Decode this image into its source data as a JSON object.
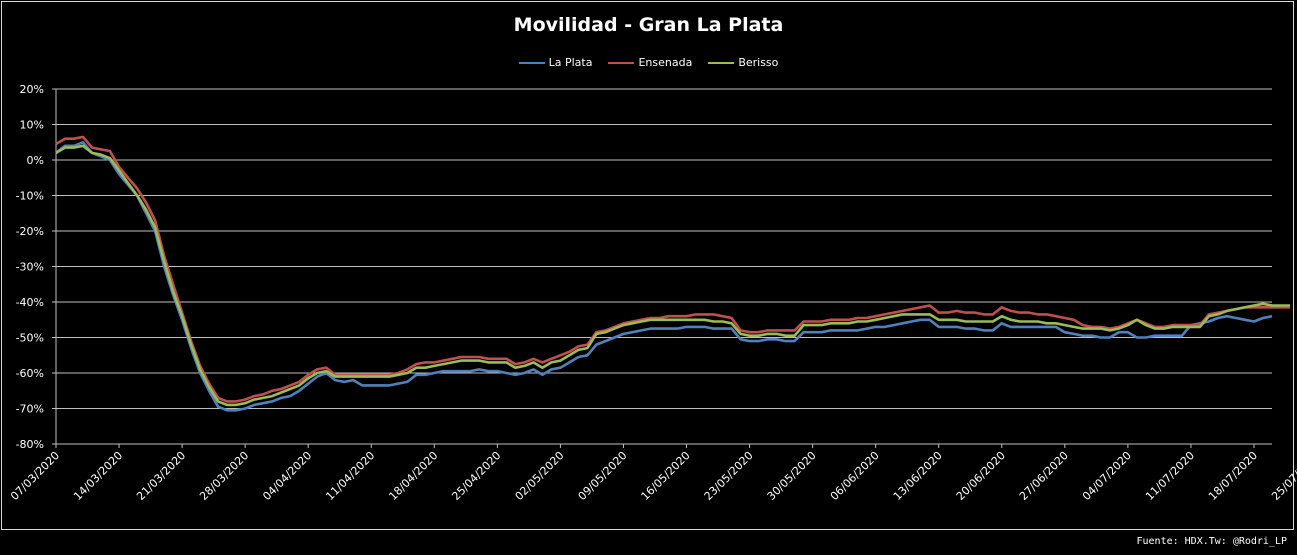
{
  "footer": {
    "source": "Fuente: HDX.Tw: @Rodri_LP"
  },
  "chart_data": {
    "type": "line",
    "title": "Movilidad - Gran La Plata",
    "xlabel": "",
    "ylabel": "",
    "ylim": [
      -80,
      20
    ],
    "yticks": [
      "20%",
      "10%",
      "0%",
      "-10%",
      "-20%",
      "-30%",
      "-40%",
      "-50%",
      "-60%",
      "-70%",
      "-80%"
    ],
    "ytick_values": [
      20,
      10,
      0,
      -10,
      -20,
      -30,
      -40,
      -50,
      -60,
      -70,
      -80
    ],
    "xticks": [
      "07/03/2020",
      "14/03/2020",
      "21/03/2020",
      "28/03/2020",
      "04/04/2020",
      "11/04/2020",
      "18/04/2020",
      "25/04/2020",
      "02/05/2020",
      "09/05/2020",
      "16/05/2020",
      "23/05/2020",
      "30/05/2020",
      "06/06/2020",
      "13/06/2020",
      "20/06/2020",
      "27/06/2020",
      "04/07/2020",
      "11/07/2020",
      "18/07/2020",
      "25/07/2020"
    ],
    "grid": true,
    "legend_position": "top",
    "series": [
      {
        "name": "La Plata",
        "color": "#4f81bd",
        "values": [
          2,
          4,
          4,
          5,
          2,
          1,
          0,
          -4,
          -7,
          -10,
          -15,
          -20,
          -30,
          -38,
          -45,
          -53,
          -60,
          -65,
          -69.5,
          -70.5,
          -70.5,
          -70,
          -69,
          -68.5,
          -68,
          -67,
          -66.5,
          -65,
          -63,
          -61,
          -60,
          -62,
          -62.5,
          -62,
          -63.5,
          -63.5,
          -63.5,
          -63.5,
          -63,
          -62.5,
          -60.5,
          -60.5,
          -60,
          -59.5,
          -59.5,
          -59.5,
          -59.5,
          -59,
          -59.5,
          -59.5,
          -60,
          -60.5,
          -60,
          -59,
          -60.5,
          -59,
          -58.5,
          -57,
          -55.5,
          -55,
          -52,
          -51,
          -50,
          -49,
          -48.5,
          -48,
          -47.5,
          -47.5,
          -47.5,
          -47.5,
          -47,
          -47,
          -47,
          -47.5,
          -47.5,
          -47.5,
          -50.5,
          -51,
          -51,
          -50.5,
          -50.5,
          -51,
          -51,
          -48.5,
          -48.5,
          -48.5,
          -48,
          -48,
          -48,
          -48,
          -47.5,
          -47,
          -47,
          -46.5,
          -46,
          -45.5,
          -45,
          -45,
          -47,
          -47,
          -47,
          -47.5,
          -47.5,
          -48,
          -48,
          -46,
          -47,
          -47,
          -47,
          -47,
          -47,
          -47,
          -48.5,
          -49,
          -49.5,
          -49.5,
          -50,
          -50,
          -48.5,
          -48.5,
          -50,
          -50,
          -49.5,
          -49.5,
          -49.5,
          -49.5,
          -46.5,
          -46,
          -45.5,
          -44.5,
          -44,
          -44.5,
          -45,
          -45.5,
          -44.5,
          -44
        ]
      },
      {
        "name": "Ensenada",
        "color": "#c0504d",
        "values": [
          4.5,
          6,
          6,
          6.5,
          3.5,
          3,
          2.5,
          -2,
          -5,
          -8,
          -12,
          -17,
          -27,
          -35,
          -43,
          -51,
          -58,
          -63,
          -67,
          -68,
          -68,
          -67.5,
          -66.5,
          -66,
          -65,
          -64.5,
          -63.5,
          -62.5,
          -60.5,
          -59,
          -58.5,
          -60.5,
          -60.5,
          -60.5,
          -60.5,
          -60.5,
          -60.5,
          -60.5,
          -60,
          -59,
          -57.5,
          -57,
          -57,
          -56.5,
          -56,
          -55.5,
          -55.5,
          -55.5,
          -56,
          -56,
          -56,
          -57.5,
          -57,
          -56,
          -57,
          -56,
          -55,
          -54,
          -52.5,
          -52,
          -48.5,
          -48,
          -47,
          -46,
          -45.5,
          -45,
          -44.5,
          -44.5,
          -44,
          -44,
          -44,
          -43.5,
          -43.5,
          -43.5,
          -44,
          -44.5,
          -48,
          -48.5,
          -48.5,
          -48,
          -48,
          -48,
          -48,
          -45.5,
          -45.5,
          -45.5,
          -45,
          -45,
          -45,
          -44.5,
          -44.5,
          -44,
          -43.5,
          -43,
          -42.5,
          -42,
          -41.5,
          -41,
          -43,
          -43,
          -42.5,
          -43,
          -43,
          -43.5,
          -43.5,
          -41.5,
          -42.5,
          -43,
          -43,
          -43.5,
          -43.5,
          -44,
          -44.5,
          -45,
          -46.5,
          -47,
          -47,
          -47.5,
          -47,
          -46,
          -45,
          -46,
          -47,
          -47,
          -46.5,
          -46.5,
          -46.5,
          -46.5,
          -43.5,
          -43,
          -42.5,
          -42,
          -41.5,
          -41.5,
          -41.5,
          -41.5,
          -41.5,
          -41.5
        ]
      },
      {
        "name": "Berisso",
        "color": "#9bbb59",
        "values": [
          2,
          3.5,
          3.5,
          4,
          2,
          1.5,
          0.5,
          -3,
          -6.5,
          -10,
          -14,
          -19,
          -28.5,
          -37,
          -44,
          -52,
          -59,
          -64,
          -68,
          -69,
          -69,
          -68.5,
          -67.5,
          -67,
          -66.5,
          -65.5,
          -64.5,
          -63.5,
          -61.5,
          -60,
          -59.5,
          -61,
          -61,
          -61,
          -61,
          -61,
          -61,
          -61,
          -60.5,
          -60,
          -58.5,
          -58.5,
          -58,
          -57.5,
          -57,
          -56.5,
          -56.5,
          -56.5,
          -57,
          -57,
          -57,
          -58.5,
          -58,
          -57,
          -58.5,
          -57,
          -56.5,
          -55,
          -53.5,
          -53,
          -49,
          -48.5,
          -47.5,
          -46.5,
          -46,
          -45.5,
          -45,
          -45,
          -45,
          -45,
          -45,
          -45,
          -45,
          -45.5,
          -45.5,
          -46,
          -49,
          -49.5,
          -49.5,
          -49,
          -49,
          -49.5,
          -49.5,
          -46.5,
          -46.5,
          -46.5,
          -46,
          -46,
          -46,
          -45.5,
          -45.5,
          -45,
          -44.5,
          -44,
          -43.5,
          -43.5,
          -43.5,
          -43.5,
          -45,
          -45,
          -45,
          -45.5,
          -45.5,
          -45.5,
          -45.5,
          -44,
          -45,
          -45.5,
          -45.5,
          -45.5,
          -46,
          -46,
          -46.5,
          -47,
          -47.5,
          -47.5,
          -47.5,
          -48,
          -47.5,
          -46.5,
          -45,
          -46.5,
          -47.5,
          -47.5,
          -47,
          -47,
          -47,
          -47,
          -44,
          -43.5,
          -42.5,
          -42,
          -41.5,
          -41,
          -40.5,
          -41,
          -41,
          -41
        ]
      }
    ]
  }
}
